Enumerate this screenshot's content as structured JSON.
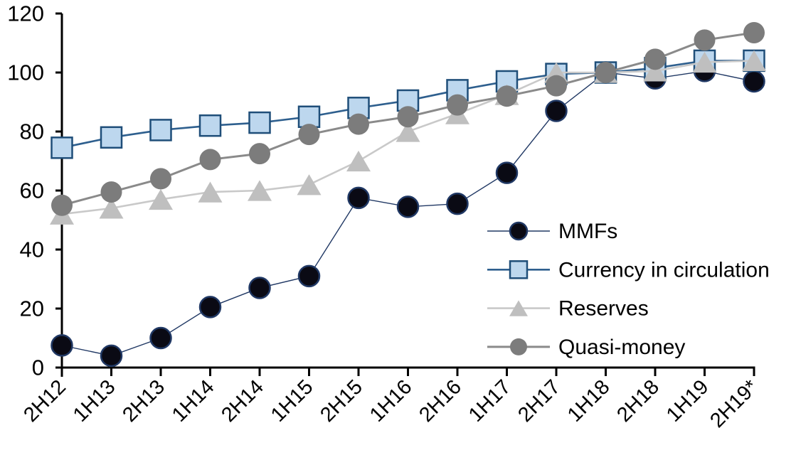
{
  "chart_data": {
    "type": "line",
    "title": "",
    "xlabel": "",
    "ylabel": "",
    "ylim": [
      0,
      120
    ],
    "yticks": [
      0,
      20,
      40,
      60,
      80,
      100,
      120
    ],
    "grid": false,
    "legend_position": "inside-right",
    "categories": [
      "2H12",
      "1H13",
      "2H13",
      "1H14",
      "2H14",
      "1H15",
      "2H15",
      "1H16",
      "2H16",
      "1H17",
      "2H17",
      "1H18",
      "2H18",
      "1H19",
      "2H19*"
    ],
    "series": [
      {
        "name": "MMFs",
        "marker": "circle",
        "marker_fill": "#0a0a14",
        "marker_stroke": "#203864",
        "line_color": "#203864",
        "line_width": 1.4,
        "marker_size": 14.5,
        "values": [
          7.5,
          4,
          10,
          20.5,
          27,
          31,
          57.5,
          54.5,
          55.5,
          66,
          87,
          100,
          98,
          100.5,
          97
        ]
      },
      {
        "name": "Currency in circulation",
        "marker": "square",
        "marker_fill": "#BDD7EE",
        "marker_stroke": "#1F4E79",
        "line_color": "#2E5F8E",
        "line_width": 2.6,
        "marker_size": 14.5,
        "values": [
          74.5,
          78,
          80.5,
          82,
          83,
          85,
          88,
          90.5,
          94,
          97,
          99.5,
          100,
          101.5,
          104,
          104
        ]
      },
      {
        "name": "Reserves",
        "marker": "triangle",
        "marker_fill": "#BFBFBF",
        "marker_stroke": "none",
        "line_color": "#C9C9C9",
        "line_width": 2.6,
        "marker_size": 17,
        "values": [
          52,
          54,
          57,
          59.5,
          60,
          62,
          70,
          80,
          86,
          92.5,
          100,
          100,
          100.5,
          103.5,
          104
        ]
      },
      {
        "name": "Quasi-money",
        "marker": "circle",
        "marker_fill": "#7C7C7C",
        "marker_stroke": "none",
        "line_color": "#8A8A8A",
        "line_width": 3,
        "marker_size": 15,
        "values": [
          55,
          59.5,
          64,
          70.5,
          72.5,
          79,
          82.5,
          85,
          89,
          92,
          95.5,
          100,
          104.5,
          111,
          113.5
        ]
      }
    ]
  }
}
